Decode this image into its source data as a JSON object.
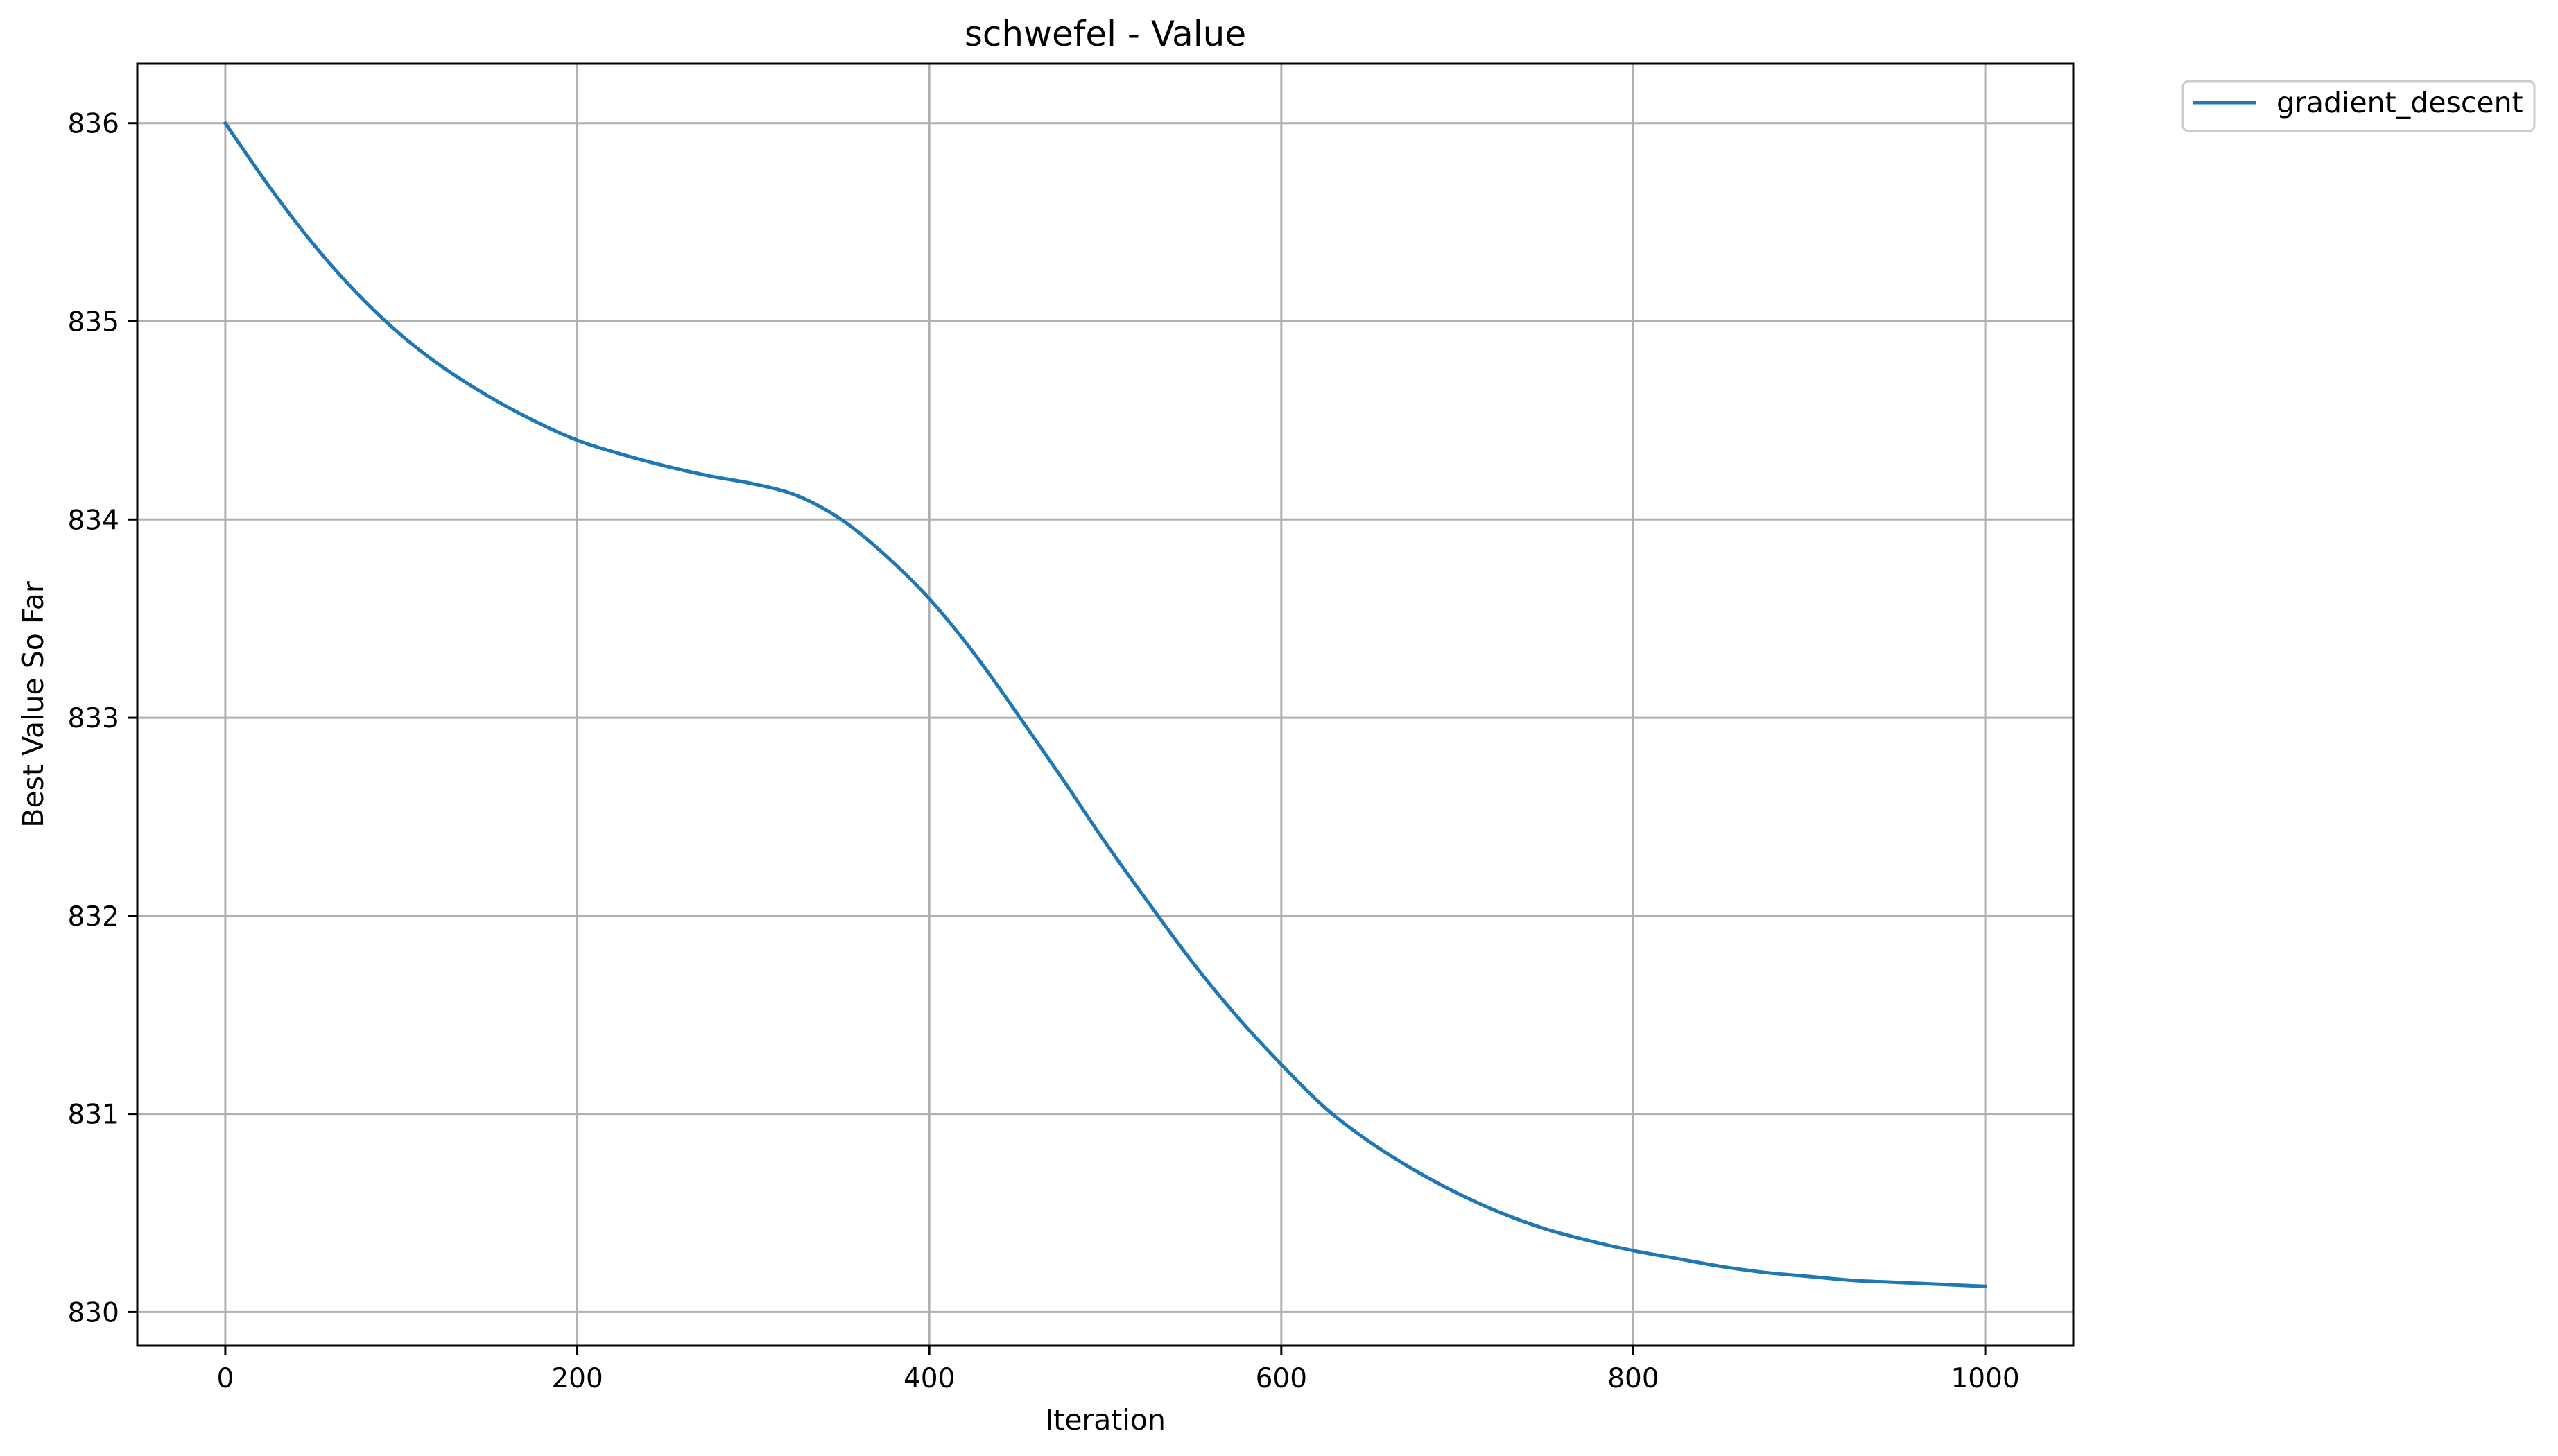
{
  "chart_data": {
    "type": "line",
    "title": "schwefel - Value",
    "xlabel": "Iteration",
    "ylabel": "Best Value So Far",
    "xlim": [
      -50,
      1050
    ],
    "ylim": [
      829.83,
      836.3
    ],
    "xticks": [
      0,
      200,
      400,
      600,
      800,
      1000
    ],
    "yticks": [
      830,
      831,
      832,
      833,
      834,
      835,
      836
    ],
    "xtick_labels": [
      "0",
      "200",
      "400",
      "600",
      "800",
      "1000"
    ],
    "ytick_labels": [
      "830",
      "831",
      "832",
      "833",
      "834",
      "835",
      "836"
    ],
    "grid": true,
    "legend": "outside-top-right",
    "series": [
      {
        "name": "gradient_descent",
        "color": "#1f77b4",
        "x": [
          0,
          25,
          50,
          75,
          100,
          125,
          150,
          175,
          200,
          225,
          250,
          275,
          300,
          325,
          350,
          375,
          400,
          425,
          450,
          475,
          500,
          525,
          550,
          575,
          600,
          625,
          650,
          675,
          700,
          725,
          750,
          775,
          800,
          825,
          850,
          875,
          900,
          925,
          950,
          975,
          1000
        ],
        "y": [
          836.0,
          835.68,
          835.39,
          835.14,
          834.93,
          834.76,
          834.62,
          834.5,
          834.4,
          834.33,
          834.27,
          834.22,
          834.18,
          834.12,
          834.0,
          833.82,
          833.6,
          833.33,
          833.02,
          832.7,
          832.37,
          832.06,
          831.76,
          831.49,
          831.25,
          831.03,
          830.86,
          830.72,
          830.6,
          830.5,
          830.42,
          830.36,
          830.31,
          830.27,
          830.23,
          830.2,
          830.18,
          830.16,
          830.15,
          830.14,
          830.13
        ]
      }
    ]
  }
}
